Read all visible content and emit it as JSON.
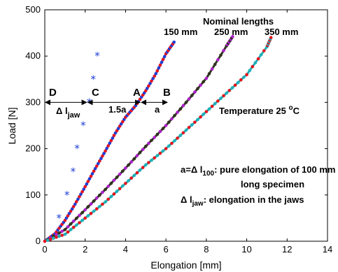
{
  "chart_data": {
    "type": "scatter",
    "xlabel": "Elongation   [mm]",
    "ylabel": "Load   [N]",
    "xlim": [
      0,
      14
    ],
    "ylim": [
      0,
      500
    ],
    "x_ticks": [
      "0",
      "2",
      "4",
      "6",
      "8",
      "10",
      "12",
      "14"
    ],
    "y_ticks": [
      "0",
      "100",
      "200",
      "300",
      "400",
      "500"
    ],
    "grid": false,
    "series": [
      {
        "name": "150 mm",
        "color": "#e8141c",
        "overlay_color": "#1f3fd6",
        "x": [
          0,
          0.5,
          1.0,
          1.5,
          2.0,
          2.5,
          3.0,
          3.5,
          4.0,
          4.5,
          5.0,
          5.5,
          6.0,
          6.4
        ],
        "y": [
          0,
          16,
          45,
          80,
          118,
          157,
          195,
          234,
          268,
          293,
          325,
          362,
          405,
          430
        ]
      },
      {
        "name": "250 mm",
        "color": "#b020d0",
        "overlay_color": "#333322",
        "x": [
          0,
          1,
          2,
          3,
          4,
          5,
          6,
          7,
          8,
          9,
          9.3
        ],
        "y": [
          0,
          25,
          68,
          112,
          158,
          205,
          250,
          300,
          352,
          422,
          442
        ]
      },
      {
        "name": "350 mm",
        "color": "#e8141c",
        "overlay_color": "#20b0b8",
        "x": [
          0,
          1,
          2,
          3,
          4,
          5,
          6,
          7,
          8,
          9,
          10,
          11,
          11.2
        ],
        "y": [
          0,
          15,
          50,
          85,
          125,
          165,
          200,
          240,
          280,
          320,
          360,
          420,
          440
        ]
      },
      {
        "name": "jaw elongation",
        "color": "#1f3fd6",
        "x": [
          0.7,
          1.1,
          1.4,
          1.6,
          1.9,
          2.2,
          2.4,
          2.6
        ],
        "y": [
          50,
          100,
          150,
          200,
          250,
          300,
          350,
          400
        ]
      }
    ],
    "annotations": {
      "nominal_lengths": "Nominal lengths",
      "length_150": "150 mm",
      "length_250": "250 mm",
      "length_350": "350 mm",
      "point_D": "D",
      "point_C": "C",
      "point_A": "A",
      "point_B": "B",
      "delta_l_jaw_label": "Δ l",
      "delta_l_jaw_sub": "jaw",
      "label_1_5a": "1.5a",
      "label_a": "a",
      "temperature_text": "Temperature 25 ",
      "temperature_sup": "o",
      "temperature_unit": "C",
      "legend_a_eq": "a=Δ l",
      "legend_a_sub": "100",
      "legend_a_desc": ":   pure elongation of 100 mm",
      "legend_a_desc2": "long specimen",
      "legend_jaw_eq": "Δ l",
      "legend_jaw_sub": "jaw",
      "legend_jaw_desc": ":   elongation in the jaws"
    }
  }
}
